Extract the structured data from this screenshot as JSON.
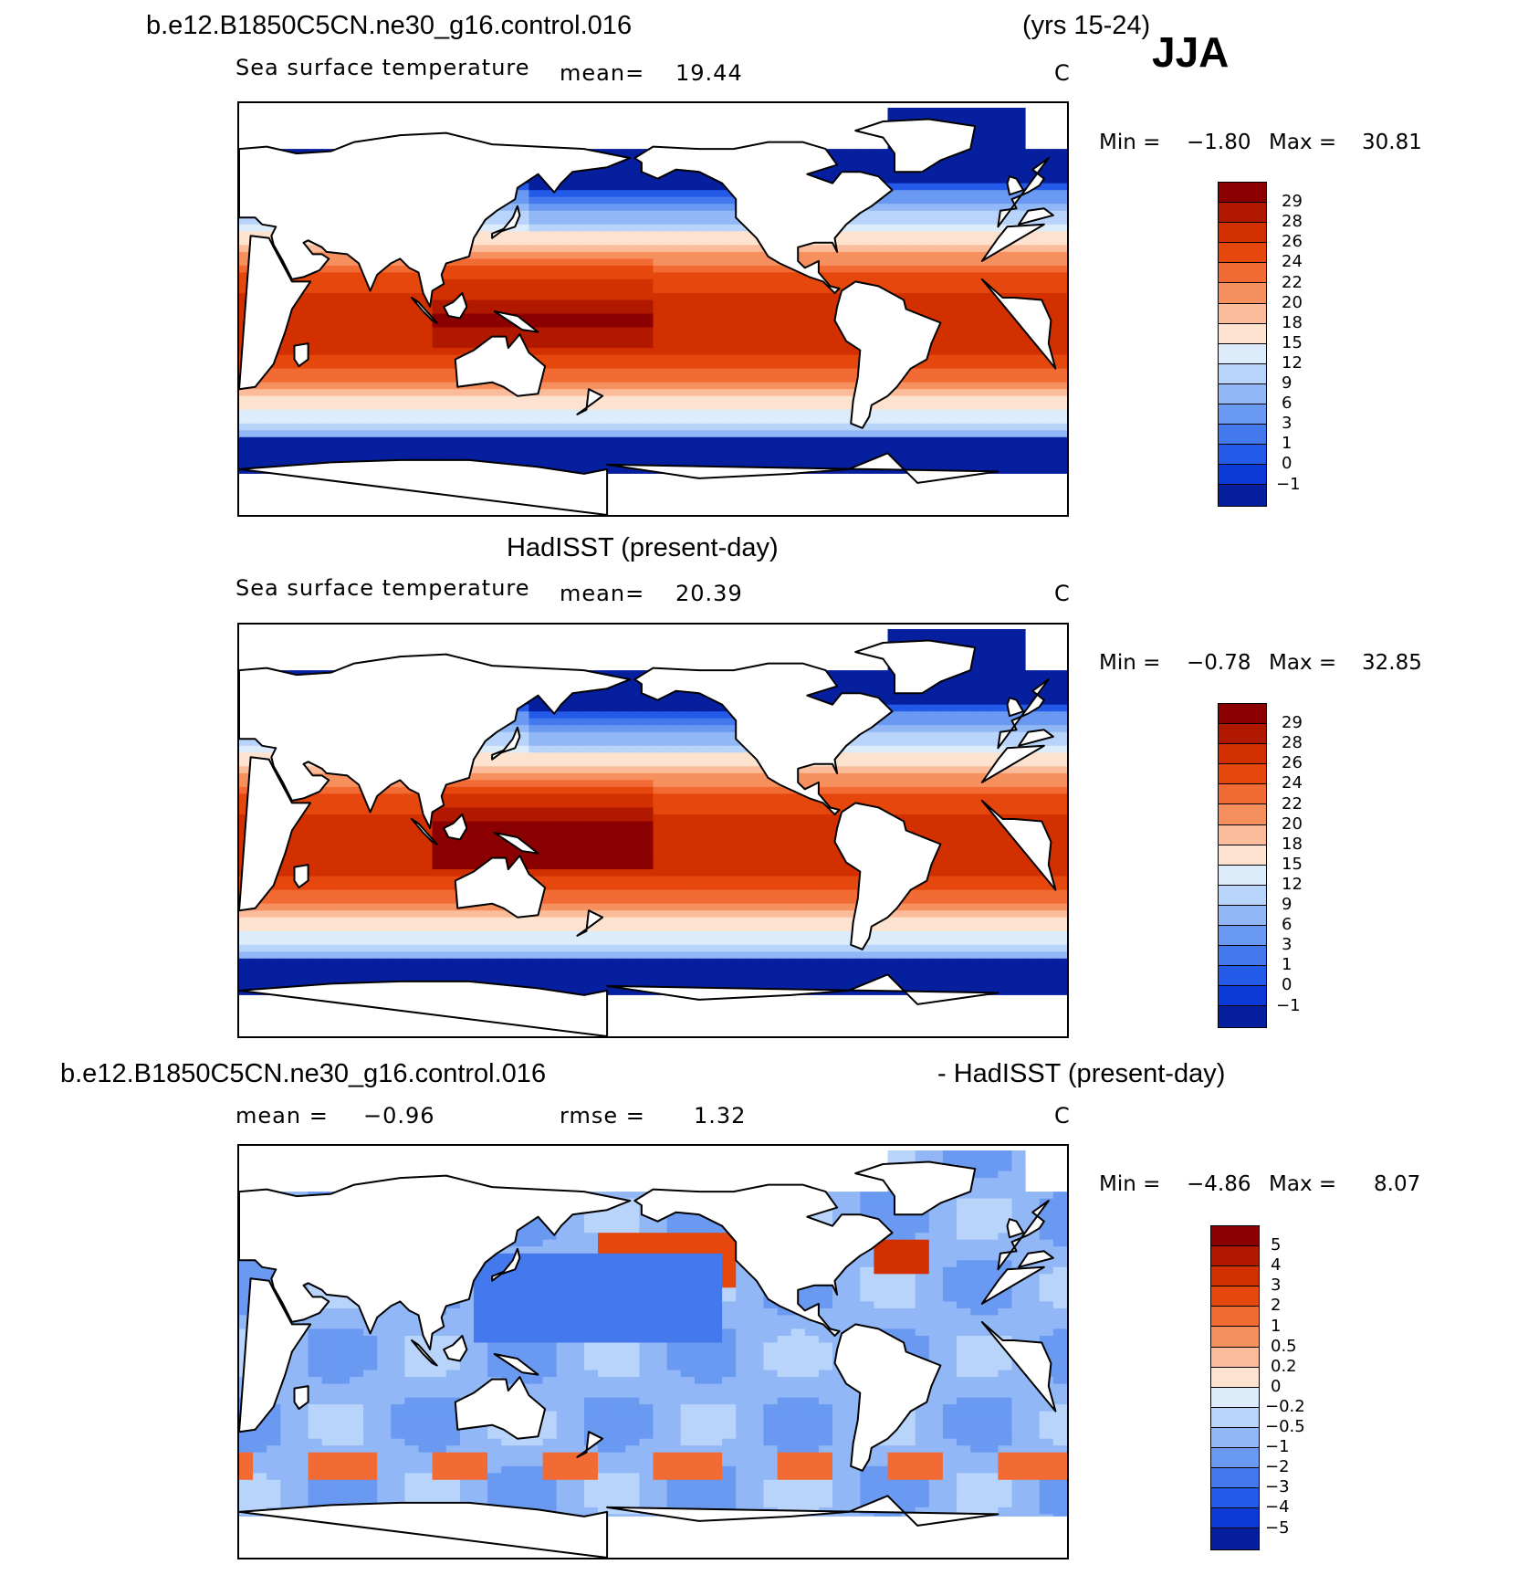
{
  "header": {
    "case_name": "b.e12.B1850C5CN.ne30_g16.control.016",
    "years": "(yrs 15-24)",
    "season": "JJA"
  },
  "panels": [
    {
      "title": "",
      "variable": "Sea surface temperature",
      "stat1_label": "mean=",
      "stat1_value": "19.44",
      "units": "C",
      "min_label": "Min =",
      "min_value": "−1.80",
      "max_label": "Max =",
      "max_value": "30.81",
      "colorbar": {
        "labels": [
          "29",
          "28",
          "26",
          "24",
          "22",
          "20",
          "18",
          "15",
          "12",
          "9",
          "6",
          "3",
          "1",
          "0",
          "−1"
        ],
        "colors": [
          "#8b0000",
          "#b01800",
          "#d23000",
          "#e5470d",
          "#f26a34",
          "#f7905f",
          "#fbbc9b",
          "#fde3cf",
          "#dcecfb",
          "#b8d4fa",
          "#92b7f6",
          "#6a99f2",
          "#4479ee",
          "#235ae8",
          "#0c3ad6",
          "#061f9e"
        ]
      }
    },
    {
      "title": "HadISST (present-day)",
      "variable": "Sea surface temperature",
      "stat1_label": "mean=",
      "stat1_value": "20.39",
      "units": "C",
      "min_label": "Min =",
      "min_value": "−0.78",
      "max_label": "Max =",
      "max_value": "32.85",
      "colorbar": {
        "labels": [
          "29",
          "28",
          "26",
          "24",
          "22",
          "20",
          "18",
          "15",
          "12",
          "9",
          "6",
          "3",
          "1",
          "0",
          "−1"
        ],
        "colors": [
          "#8b0000",
          "#b01800",
          "#d23000",
          "#e5470d",
          "#f26a34",
          "#f7905f",
          "#fbbc9b",
          "#fde3cf",
          "#dcecfb",
          "#b8d4fa",
          "#92b7f6",
          "#6a99f2",
          "#4479ee",
          "#235ae8",
          "#0c3ad6",
          "#061f9e"
        ]
      }
    },
    {
      "title_left": "b.e12.B1850C5CN.ne30_g16.control.016",
      "title_right": "- HadISST (present-day)",
      "stat1_label": "mean =",
      "stat1_value": "−0.96",
      "stat2_label": "rmse =",
      "stat2_value": "1.32",
      "units": "C",
      "min_label": "Min =",
      "min_value": "−4.86",
      "max_label": "Max =",
      "max_value": "8.07",
      "colorbar": {
        "labels": [
          "5",
          "4",
          "3",
          "2",
          "1",
          "0.5",
          "0.2",
          "0",
          "−0.2",
          "−0.5",
          "−1",
          "−2",
          "−3",
          "−4",
          "−5"
        ],
        "colors": [
          "#8b0000",
          "#b01800",
          "#d23000",
          "#e5470d",
          "#f26a34",
          "#f7905f",
          "#fbbc9b",
          "#fde3cf",
          "#dcecfb",
          "#b8d4fa",
          "#92b7f6",
          "#6a99f2",
          "#4479ee",
          "#235ae8",
          "#0c3ad6",
          "#061f9e"
        ]
      }
    }
  ]
}
